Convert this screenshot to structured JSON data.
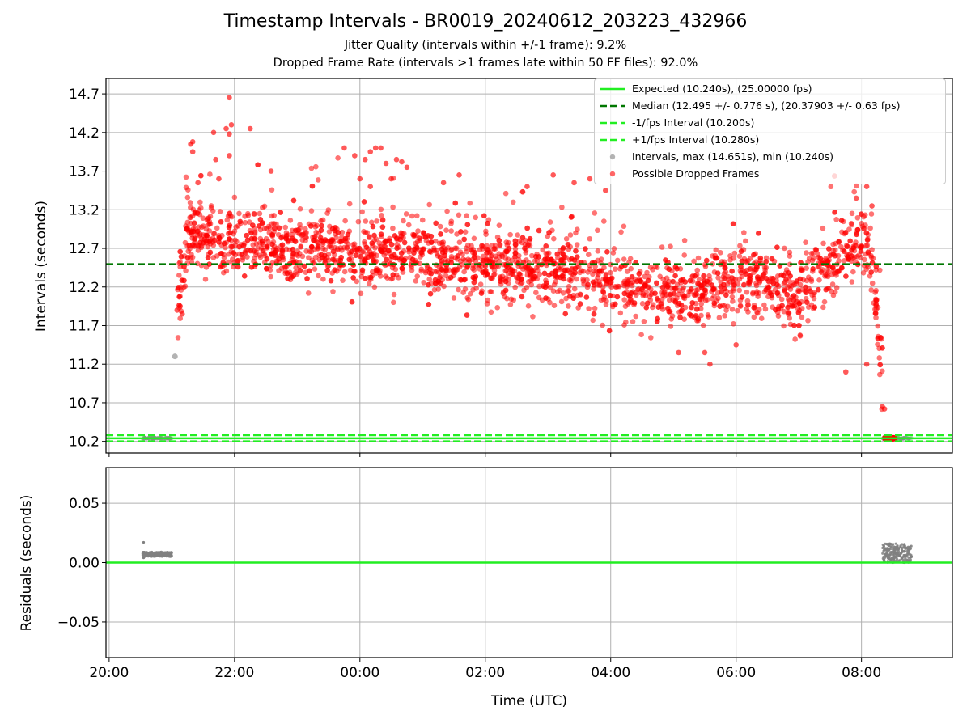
{
  "figure": {
    "title": "Timestamp Intervals - BR0019_20240612_203223_432966",
    "subtitle_1": "Jitter Quality (intervals within +/-1 frame): 9.2%",
    "subtitle_2": "Dropped Frame Rate (intervals >1 frames late within 50 FF files): 92.0%"
  },
  "chart_data": [
    {
      "type": "scatter",
      "ylabel": "Intervals (seconds)",
      "y_ticks": [
        "10.2",
        "10.7",
        "11.2",
        "11.7",
        "12.2",
        "12.7",
        "13.2",
        "13.7",
        "14.2",
        "14.7"
      ],
      "ylim": [
        10.05,
        14.9
      ],
      "x_range_hours": [
        -4.05,
        9.45
      ],
      "grid": true,
      "legend_position": "top-right",
      "legend": [
        {
          "label": "Expected (10.240s), (25.00000 fps)",
          "style": "solid",
          "color": "#22ee22"
        },
        {
          "label": "Median (12.495 +/- 0.776 s), (20.37903 +/- 0.63 fps)",
          "style": "dashed",
          "color": "#007700"
        },
        {
          "label": "-1/fps Interval (10.200s)",
          "style": "dashed",
          "color": "#22ee22"
        },
        {
          "label": "+1/fps Interval (10.280s)",
          "style": "dashed",
          "color": "#22ee22"
        },
        {
          "label": "Intervals, max (14.651s), min (10.240s)",
          "style": "marker",
          "color": "#999999"
        },
        {
          "label": "Possible Dropped Frames",
          "style": "marker",
          "color": "#ff0000"
        }
      ],
      "reference_lines": {
        "expected": 10.24,
        "median": 12.495,
        "minus_one_fps": 10.2,
        "plus_one_fps": 10.28
      },
      "intervals_stats": {
        "max": 14.651,
        "min": 10.24
      },
      "jitter_clusters": [
        {
          "start": "20:32",
          "end": "21:00",
          "value": 10.24
        },
        {
          "start": "08:20",
          "end": "08:48",
          "value": 10.24
        }
      ],
      "gray_outlier": {
        "time": "21:03",
        "value": 11.3
      },
      "dropped_frames_trend": [
        {
          "time": "21:05",
          "value": 11.9
        },
        {
          "time": "21:15",
          "value": 12.9
        },
        {
          "time": "22:00",
          "value": 12.8
        },
        {
          "time": "23:00",
          "value": 12.72
        },
        {
          "time": "00:00",
          "value": 12.68
        },
        {
          "time": "01:00",
          "value": 12.62
        },
        {
          "time": "02:00",
          "value": 12.5
        },
        {
          "time": "03:00",
          "value": 12.45
        },
        {
          "time": "04:00",
          "value": 12.3
        },
        {
          "time": "05:00",
          "value": 12.08
        },
        {
          "time": "06:00",
          "value": 12.3
        },
        {
          "time": "07:00",
          "value": 12.1
        },
        {
          "time": "08:00",
          "value": 12.82
        },
        {
          "time": "08:10",
          "value": 12.55
        },
        {
          "time": "08:20",
          "value": 11.1
        }
      ],
      "dropped_frames_spread": 0.22,
      "notable_points": [
        {
          "time": "21:55",
          "value": 14.651
        },
        {
          "time": "21:57",
          "value": 14.3
        },
        {
          "time": "21:52",
          "value": 14.25
        },
        {
          "time": "21:40",
          "value": 14.2
        },
        {
          "time": "21:55",
          "value": 14.18
        },
        {
          "time": "22:15",
          "value": 14.25
        },
        {
          "time": "21:20",
          "value": 14.08
        },
        {
          "time": "21:18",
          "value": 14.05
        },
        {
          "time": "21:20",
          "value": 13.95
        },
        {
          "time": "21:55",
          "value": 13.9
        },
        {
          "time": "21:42",
          "value": 13.85
        },
        {
          "time": "21:45",
          "value": 13.6
        },
        {
          "time": "21:25",
          "value": 13.55
        },
        {
          "time": "22:35",
          "value": 13.7
        },
        {
          "time": "23:45",
          "value": 14.0
        },
        {
          "time": "00:15",
          "value": 14.0
        },
        {
          "time": "00:20",
          "value": 14.0
        },
        {
          "time": "00:10",
          "value": 13.95
        },
        {
          "time": "23:55",
          "value": 13.9
        },
        {
          "time": "00:05",
          "value": 13.85
        },
        {
          "time": "00:25",
          "value": 13.8
        },
        {
          "time": "00:35",
          "value": 13.85
        },
        {
          "time": "00:40",
          "value": 13.82
        },
        {
          "time": "00:45",
          "value": 13.75
        },
        {
          "time": "00:30",
          "value": 13.6
        },
        {
          "time": "00:00",
          "value": 13.6
        },
        {
          "time": "00:10",
          "value": 13.5
        },
        {
          "time": "01:20",
          "value": 13.55
        },
        {
          "time": "01:35",
          "value": 13.65
        },
        {
          "time": "03:05",
          "value": 13.65
        },
        {
          "time": "03:25",
          "value": 13.55
        },
        {
          "time": "03:40",
          "value": 13.6
        },
        {
          "time": "02:40",
          "value": 13.5
        },
        {
          "time": "03:55",
          "value": 13.45
        },
        {
          "time": "08:05",
          "value": 13.5
        },
        {
          "time": "07:55",
          "value": 13.35
        },
        {
          "time": "08:10",
          "value": 13.25
        },
        {
          "time": "05:35",
          "value": 11.2
        },
        {
          "time": "05:05",
          "value": 11.35
        },
        {
          "time": "05:30",
          "value": 11.35
        },
        {
          "time": "06:00",
          "value": 11.45
        },
        {
          "time": "07:45",
          "value": 11.1
        },
        {
          "time": "08:05",
          "value": 11.2
        },
        {
          "time": "08:20",
          "value": 10.65
        },
        {
          "time": "08:22",
          "value": 10.62
        },
        {
          "time": "21:05",
          "value": 11.9
        },
        {
          "time": "21:10",
          "value": 11.85
        },
        {
          "time": "21:08",
          "value": 11.95
        }
      ],
      "dropped_red_cluster": {
        "start": "08:22",
        "end": "08:32",
        "value": 10.24
      }
    },
    {
      "type": "scatter",
      "ylabel": "Residuals (seconds)",
      "xlabel": "Time (UTC)",
      "y_ticks": [
        "−0.05",
        "0.00",
        "0.05"
      ],
      "ylim": [
        -0.08,
        0.08
      ],
      "x_ticks": [
        "20:00",
        "22:00",
        "00:00",
        "02:00",
        "04:00",
        "06:00",
        "08:00"
      ],
      "x_tick_hours": [
        -4,
        -2,
        0,
        2,
        4,
        6,
        8
      ],
      "grid": true,
      "zero_line_color": "#22ee22",
      "residual_clusters": [
        {
          "start": "20:32",
          "end": "21:00",
          "value": 0.007,
          "spread": 0.002,
          "color": "#808080"
        },
        {
          "start": "08:20",
          "end": "08:48",
          "value": 0.008,
          "spread": 0.008,
          "color": "#808080"
        }
      ],
      "residual_outliers": [
        {
          "time": "20:33",
          "value": 0.017
        },
        {
          "time": "20:33",
          "value": 0.004
        }
      ]
    }
  ]
}
